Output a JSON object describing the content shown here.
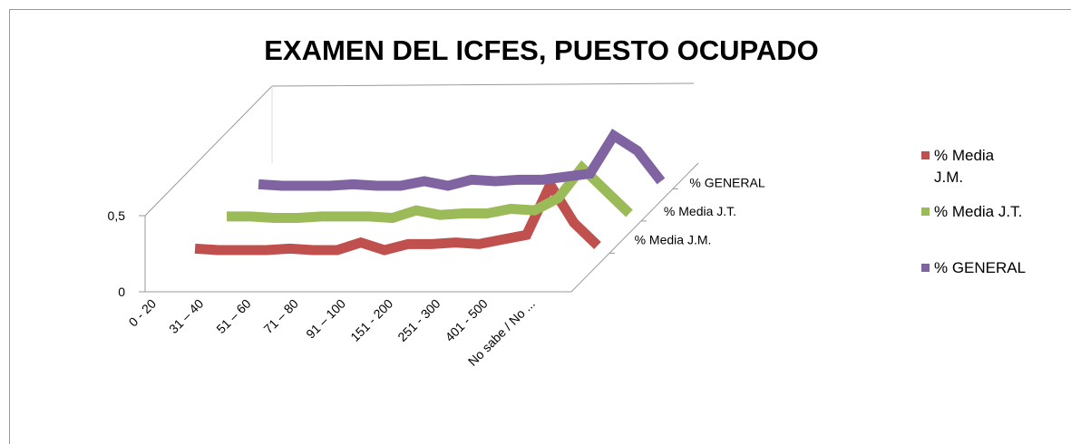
{
  "chart_data": {
    "type": "line3d",
    "title": "EXAMEN DEL ICFES,  PUESTO OCUPADO",
    "categories": [
      "0 - 20",
      null,
      "31 – 40",
      null,
      "51 – 60",
      null,
      "71 – 80",
      null,
      "91 – 100",
      null,
      "151 - 200",
      null,
      "251 - 300",
      null,
      "401 - 500",
      null,
      "No sabe / No ...",
      null
    ],
    "series": [
      {
        "name": "% Media J.M.",
        "color": "#c0504d",
        "values": [
          0.03,
          0.02,
          0.02,
          0.02,
          0.03,
          0.02,
          0.02,
          0.07,
          0.02,
          0.06,
          0.06,
          0.07,
          0.06,
          0.09,
          0.12,
          0.45,
          0.2,
          0.05
        ]
      },
      {
        "name": "% Media J.T.",
        "color": "#9bbb59",
        "values": [
          0.03,
          0.03,
          0.02,
          0.02,
          0.03,
          0.03,
          0.03,
          0.02,
          0.07,
          0.04,
          0.05,
          0.05,
          0.08,
          0.07,
          0.15,
          0.35,
          0.2,
          0.05
        ]
      },
      {
        "name": "% GENERAL",
        "color": "#8064a2",
        "values": [
          0.03,
          0.02,
          0.02,
          0.02,
          0.03,
          0.02,
          0.02,
          0.05,
          0.02,
          0.06,
          0.05,
          0.06,
          0.06,
          0.08,
          0.1,
          0.35,
          0.25,
          0.05
        ]
      }
    ],
    "ylim": [
      0,
      0.5
    ],
    "yticks": [
      0,
      {
        "value": 0.5,
        "label": "0,5"
      }
    ],
    "legend": "right"
  }
}
